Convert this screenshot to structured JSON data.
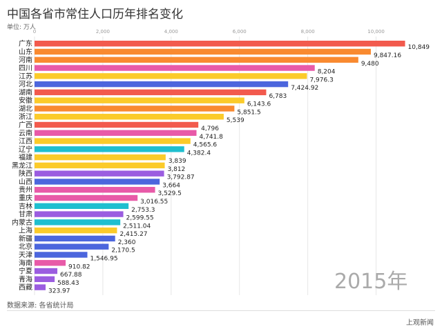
{
  "title": "中国各省市常住人口历年排名变化",
  "unit_label": "单位: 万人",
  "source": "数据来源: 各省统计局",
  "brand": "上观新闻",
  "year_label": "2015年",
  "chart_data": {
    "type": "bar",
    "orientation": "horizontal",
    "xlim": [
      0,
      11000
    ],
    "ticks": [
      0,
      2000,
      4000,
      6000,
      8000,
      10000
    ],
    "tick_labels": [
      "0",
      "2,000",
      "4,000",
      "6,000",
      "8,000",
      "10,000"
    ],
    "grid": true,
    "bars": [
      {
        "name": "广东",
        "value": 10849,
        "label": "10,849",
        "color": "#f25a4d"
      },
      {
        "name": "山东",
        "value": 9847.16,
        "label": "9,847.16",
        "color": "#f98a30"
      },
      {
        "name": "河南",
        "value": 9480,
        "label": "9,480",
        "color": "#f98a30"
      },
      {
        "name": "四川",
        "value": 8204,
        "label": "8,204",
        "color": "#e85aa8"
      },
      {
        "name": "江苏",
        "value": 7976.3,
        "label": "7,976.3",
        "color": "#fbcb2a"
      },
      {
        "name": "河北",
        "value": 7424.92,
        "label": "7,424.92",
        "color": "#4c66dd"
      },
      {
        "name": "湖南",
        "value": 6783,
        "label": "6,783",
        "color": "#f25a4d"
      },
      {
        "name": "安徽",
        "value": 6143.6,
        "label": "6,143.6",
        "color": "#fbcb2a"
      },
      {
        "name": "湖北",
        "value": 5851.5,
        "label": "5,851.5",
        "color": "#f98a30"
      },
      {
        "name": "浙江",
        "value": 5539,
        "label": "5,539",
        "color": "#fbcb2a"
      },
      {
        "name": "广西",
        "value": 4796,
        "label": "4,796",
        "color": "#f25a4d"
      },
      {
        "name": "云南",
        "value": 4741.8,
        "label": "4,741.8",
        "color": "#e85aa8"
      },
      {
        "name": "江西",
        "value": 4565.6,
        "label": "4,565.6",
        "color": "#fbcb2a"
      },
      {
        "name": "辽宁",
        "value": 4382.4,
        "label": "4,382.4",
        "color": "#1fbfcf"
      },
      {
        "name": "福建",
        "value": 3839,
        "label": "3,839",
        "color": "#fbcb2a"
      },
      {
        "name": "黑龙江",
        "value": 3812,
        "label": "3,812",
        "color": "#fbcb2a"
      },
      {
        "name": "陕西",
        "value": 3792.87,
        "label": "3,792.87",
        "color": "#9b5de0"
      },
      {
        "name": "山西",
        "value": 3664,
        "label": "3,664",
        "color": "#4c66dd"
      },
      {
        "name": "贵州",
        "value": 3529.5,
        "label": "3,529.5",
        "color": "#e85aa8"
      },
      {
        "name": "重庆",
        "value": 3016.55,
        "label": "3,016.55",
        "color": "#e85aa8"
      },
      {
        "name": "吉林",
        "value": 2753.3,
        "label": "2,753.3",
        "color": "#1fbfcf"
      },
      {
        "name": "甘肃",
        "value": 2599.55,
        "label": "2,599.55",
        "color": "#9b5de0"
      },
      {
        "name": "内蒙古",
        "value": 2511.04,
        "label": "2,511.04",
        "color": "#1fbfcf"
      },
      {
        "name": "上海",
        "value": 2415.27,
        "label": "2,415.27",
        "color": "#fbcb2a"
      },
      {
        "name": "新疆",
        "value": 2360,
        "label": "2,360",
        "color": "#4c66dd"
      },
      {
        "name": "北京",
        "value": 2170.5,
        "label": "2,170.5",
        "color": "#4c66dd"
      },
      {
        "name": "天津",
        "value": 1546.95,
        "label": "1,546.95",
        "color": "#4c66dd"
      },
      {
        "name": "海南",
        "value": 910.82,
        "label": "910.82",
        "color": "#e85aa8"
      },
      {
        "name": "宁夏",
        "value": 667.88,
        "label": "667.88",
        "color": "#9b5de0"
      },
      {
        "name": "青海",
        "value": 588.43,
        "label": "588.43",
        "color": "#9b5de0"
      },
      {
        "name": "西藏",
        "value": 323.97,
        "label": "323.97",
        "color": "#9b5de0"
      }
    ]
  }
}
